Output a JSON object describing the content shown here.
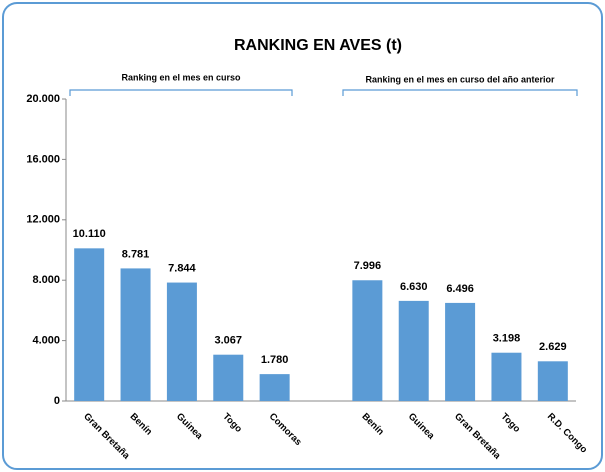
{
  "chart_data": {
    "type": "bar",
    "title": "RANKING EN AVES (t)",
    "annotations": [
      "Ranking en el mes en curso",
      "Ranking en el mes en curso del año anterior"
    ],
    "categories": [
      "Gran Bretaña",
      "Benín",
      "Guinea",
      "Togo",
      "Comoras",
      null,
      "Benín",
      "Guinea",
      "Gran Bretaña",
      "Togo",
      "R.D. Congo"
    ],
    "values": [
      10110,
      8781,
      7844,
      3067,
      1780,
      null,
      7996,
      6630,
      6496,
      3198,
      2629
    ],
    "value_labels": [
      "10.110",
      "8.781",
      "7.844",
      "3.067",
      "1.780",
      null,
      "7.996",
      "6.630",
      "6.496",
      "3.198",
      "2.629"
    ],
    "color": "#5b9bd5",
    "ylim": [
      0,
      20000
    ],
    "yticks": [
      0,
      {
        "value": 4000,
        "label": "4.000"
      },
      {
        "value": 8000,
        "label": "8.000"
      },
      {
        "value": 12000,
        "label": "12.000"
      },
      {
        "value": 16000,
        "label": "16.000"
      },
      {
        "value": 20000,
        "label": "20.000"
      }
    ],
    "grid": false
  }
}
